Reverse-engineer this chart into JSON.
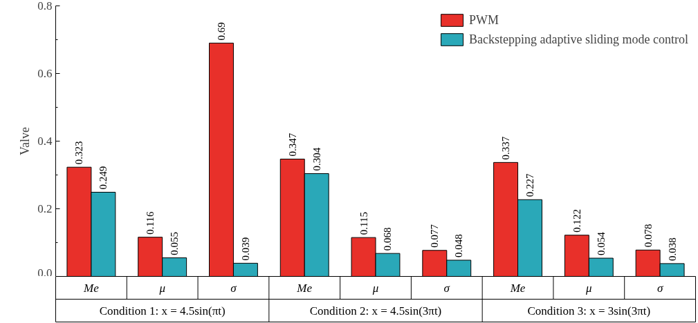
{
  "chart_data": {
    "type": "bar",
    "ylabel": "Valve",
    "categories": [
      "Me",
      "μ",
      "σ",
      "Me",
      "μ",
      "σ",
      "Me",
      "μ",
      "σ"
    ],
    "series": [
      {
        "name": "PWM",
        "color": "#e8302a",
        "values": [
          0.323,
          0.116,
          0.69,
          0.347,
          0.115,
          0.077,
          0.337,
          0.122,
          0.078
        ]
      },
      {
        "name": "Backstepping adaptive sliding mode control",
        "color": "#2aa8b8",
        "values": [
          0.249,
          0.055,
          0.039,
          0.304,
          0.068,
          0.048,
          0.227,
          0.054,
          0.038
        ]
      }
    ],
    "annotations": [
      "Condition 1: x = 4.5sin(πt)",
      "Condition 2: x = 4.5sin(3πt)",
      "Condition 3: x = 3sin(3πt)"
    ],
    "ylim": [
      0,
      0.8
    ],
    "yticks": [
      {
        "value": 0,
        "label": "0.0"
      },
      {
        "value": 0.2,
        "label": "0.2"
      },
      {
        "value": 0.4,
        "label": "0.4"
      },
      {
        "value": 0.6,
        "label": "0.6"
      },
      {
        "value": 0.8,
        "label": "0.8"
      }
    ],
    "data_labels": true,
    "legend": "top right",
    "grid": false
  }
}
